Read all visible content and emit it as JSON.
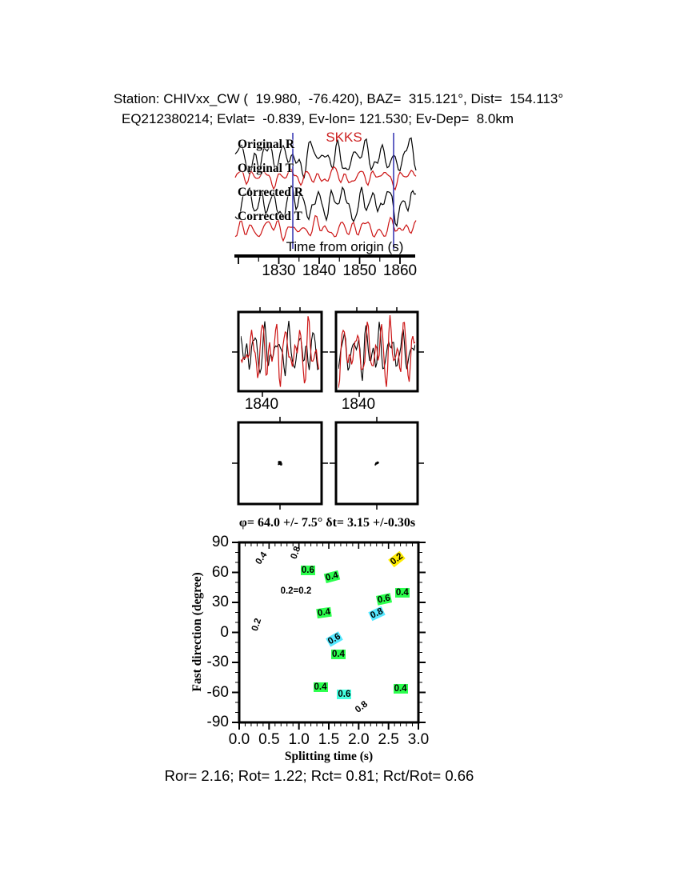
{
  "header": {
    "line1": "Station: CHIVxx_CW (  19.980,  -76.420), BAZ=  315.121°, Dist=  154.113°",
    "line2": "EQ212380214; Evlat=  -0.839, Ev-lon= 121.530; Ev-Dep=  8.0km"
  },
  "stats_line": "Ror= 2.16; Rot= 1.22; Rct= 0.81; Rct/Rot= 0.66",
  "colors": {
    "trace_black": "#000000",
    "trace_red": "#cc1414",
    "phase_label_red": "#cc2020",
    "window_marker_blue": "#3030b0",
    "contour_yellow": "#ffdf00",
    "contour_green": "#00b428",
    "contour_blue": "#004eff",
    "contour_red": "#ff1e00"
  },
  "chart_data": [
    {
      "type": "line",
      "panel": "waveforms",
      "series": [
        {
          "label": "Original R",
          "color": "#000000"
        },
        {
          "label": "Original T",
          "color": "#cc1414"
        },
        {
          "label": "Corrected R",
          "color": "#000000"
        },
        {
          "label": "Corrected T",
          "color": "#cc1414"
        }
      ],
      "annotations": [
        "SKKS"
      ],
      "xlabel": "Time from origin (s)",
      "x_ticks": [
        "1830",
        "1840",
        "1850",
        "1860"
      ]
    },
    {
      "type": "line",
      "panel": "zoom-windows",
      "boxes": [
        {
          "x_tick": "1840",
          "series": [
            "black",
            "red"
          ]
        },
        {
          "x_tick": "1840",
          "series": [
            "black",
            "red"
          ]
        }
      ]
    },
    {
      "type": "scatter",
      "panel": "particle-motion",
      "boxes": 2
    },
    {
      "type": "contour",
      "title": "φ= 64.0 +/- 7.5° δt= 3.15 +/-0.30s",
      "best_fit": {
        "phi_deg": 64.0,
        "phi_err_deg": 7.5,
        "dt_s": 3.15,
        "dt_err_s": 0.3
      },
      "xlabel": "Splitting time (s)",
      "ylabel": "Fast direction (degree)",
      "xlim": [
        0.0,
        3.0
      ],
      "ylim": [
        -90,
        90
      ],
      "x_ticks": [
        "0.0",
        "0.5",
        "1.0",
        "1.5",
        "2.0",
        "2.5",
        "3.0"
      ],
      "y_ticks": [
        "90",
        "60",
        "30",
        "0",
        "-30",
        "-60",
        "-90"
      ],
      "levels": [
        0.2,
        0.4,
        0.6,
        0.8
      ],
      "labels": [
        {
          "t": 0.38,
          "phi": 74,
          "text": "0.4",
          "bg": null,
          "rot": -55
        },
        {
          "t": 0.95,
          "phi": 80,
          "text": "0.8",
          "bg": null,
          "rot": -70
        },
        {
          "t": 1.15,
          "phi": 62,
          "text": "0.6",
          "bg": "#2bff4d",
          "rot": 0
        },
        {
          "t": 1.55,
          "phi": 56,
          "text": "0.4",
          "bg": "#2bff4d",
          "rot": -15
        },
        {
          "t": 2.64,
          "phi": 73,
          "text": "0.2",
          "bg": "#ffec00",
          "rot": -38
        },
        {
          "t": 0.95,
          "phi": 41,
          "text": "0.2=0.2",
          "bg": null,
          "rot": 0
        },
        {
          "t": 0.3,
          "phi": 8,
          "text": "0.2",
          "bg": null,
          "rot": -72
        },
        {
          "t": 2.73,
          "phi": 40,
          "text": "0.4",
          "bg": "#2bff4d",
          "rot": 0
        },
        {
          "t": 2.42,
          "phi": 33,
          "text": "0.6",
          "bg": "#2bff4d",
          "rot": -12
        },
        {
          "t": 2.3,
          "phi": 19,
          "text": "0.8",
          "bg": "#55e8ff",
          "rot": -25
        },
        {
          "t": 1.42,
          "phi": 20,
          "text": "0.4",
          "bg": "#2bff4d",
          "rot": -8
        },
        {
          "t": 1.6,
          "phi": -7,
          "text": "0.6",
          "bg": "#55e8ff",
          "rot": -30
        },
        {
          "t": 1.66,
          "phi": -22,
          "text": "0.4",
          "bg": "#2bff4d",
          "rot": 0
        },
        {
          "t": 1.36,
          "phi": -55,
          "text": "0.4",
          "bg": "#2bff4d",
          "rot": 0
        },
        {
          "t": 1.76,
          "phi": -62,
          "text": "0.6",
          "bg": "#45ffe0",
          "rot": 0
        },
        {
          "t": 2.05,
          "phi": -75,
          "text": "0.8",
          "bg": null,
          "rot": -38
        },
        {
          "t": 2.7,
          "phi": -56,
          "text": "0.4",
          "bg": "#2bff4d",
          "rot": 0
        }
      ]
    }
  ]
}
